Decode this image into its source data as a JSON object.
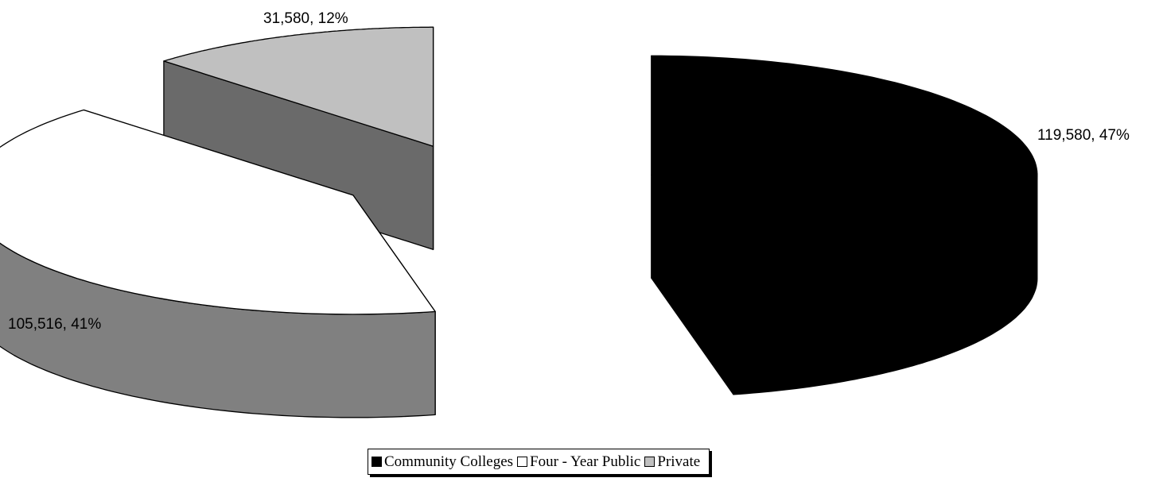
{
  "chart_data": {
    "type": "pie",
    "title": "",
    "categories": [
      "Community Colleges",
      "Four - Year Public",
      "Private"
    ],
    "values": [
      119580,
      105516,
      31580
    ],
    "percentages": [
      47,
      41,
      12
    ],
    "data_labels": [
      "119,580, 47%",
      "105,516, 41%",
      "31,580, 12%"
    ],
    "colors": [
      "#000000",
      "#ffffff",
      "#c0c0c0"
    ],
    "style": "3d-exploded",
    "legend": {
      "position": "bottom",
      "entries": [
        "Community Colleges",
        "Four - Year Public",
        "Private"
      ]
    }
  }
}
